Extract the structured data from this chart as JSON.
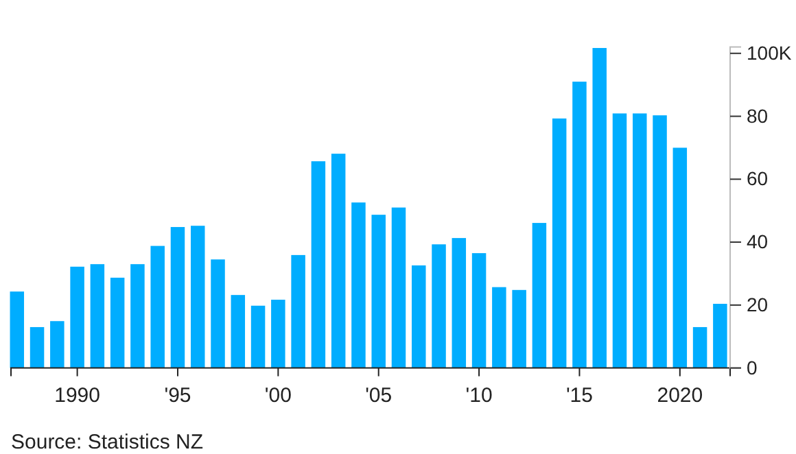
{
  "chart_data": {
    "type": "bar",
    "x": [
      1987,
      1988,
      1989,
      1990,
      1991,
      1992,
      1993,
      1994,
      1995,
      1996,
      1997,
      1998,
      1999,
      2000,
      2001,
      2002,
      2003,
      2004,
      2005,
      2006,
      2007,
      2008,
      2009,
      2010,
      2011,
      2012,
      2013,
      2014,
      2015,
      2016,
      2017,
      2018,
      2019,
      2020,
      2021,
      2022
    ],
    "values": [
      24.3,
      13,
      14.9,
      32.2,
      33,
      28.7,
      33,
      38.8,
      44.8,
      45.2,
      34.5,
      23.2,
      19.8,
      21.7,
      35.9,
      65.7,
      68.1,
      52.6,
      48.7,
      51,
      32.6,
      39.3,
      41.3,
      36.5,
      25.7,
      24.8,
      46.1,
      79.3,
      91,
      101.7,
      80.9,
      80.9,
      80.3,
      70,
      13,
      20.4
    ],
    "color": "#00adff",
    "xlim": [
      1986.7,
      2022.5
    ],
    "xticks": [
      {
        "value": 1990,
        "label": "1990"
      },
      {
        "value": 1995,
        "label": "'95"
      },
      {
        "value": 2000,
        "label": "'00"
      },
      {
        "value": 2005,
        "label": "'05"
      },
      {
        "value": 2010,
        "label": "'10"
      },
      {
        "value": 2015,
        "label": "'15"
      },
      {
        "value": 2020,
        "label": "2020"
      }
    ],
    "ylim": [
      0,
      102
    ],
    "yticks": [
      0,
      20,
      40,
      60,
      80,
      {
        "value": 100,
        "label": "100K"
      }
    ],
    "grid": false,
    "annotations": [
      "Source: Statistics NZ"
    ]
  }
}
